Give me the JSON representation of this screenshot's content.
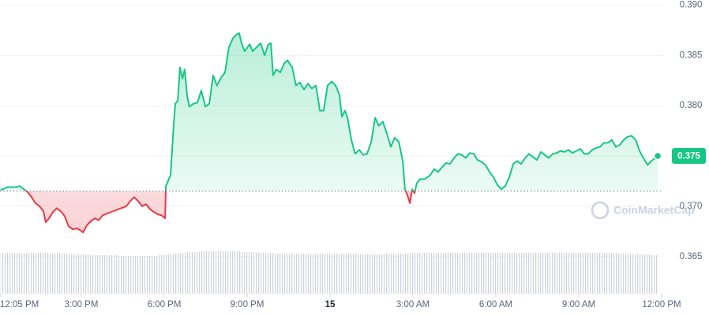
{
  "chart_data": {
    "type": "line",
    "watermark": "CoinMarketCap",
    "x": [
      0.08,
      0.34,
      0.63,
      0.77,
      1.06,
      1.2,
      1.34,
      1.49,
      1.63,
      1.71,
      1.83,
      1.97,
      2.11,
      2.26,
      2.4,
      2.54,
      2.69,
      2.83,
      2.97,
      3.06,
      3.2,
      3.34,
      3.49,
      3.63,
      3.77,
      4.06,
      4.34,
      4.63,
      4.77,
      4.91,
      5.06,
      5.2,
      5.34,
      5.49,
      5.63,
      5.77,
      5.91,
      6.03,
      6.06,
      6.23,
      6.34,
      6.4,
      6.49,
      6.57,
      6.66,
      6.74,
      6.83,
      6.91,
      7.06,
      7.2,
      7.34,
      7.49,
      7.63,
      7.77,
      7.91,
      8.06,
      8.2,
      8.34,
      8.49,
      8.63,
      8.71,
      8.8,
      8.91,
      9.09,
      9.2,
      9.34,
      9.49,
      9.63,
      9.77,
      9.86,
      9.94,
      10.06,
      10.2,
      10.34,
      10.46,
      10.63,
      10.77,
      10.91,
      11.06,
      11.2,
      11.34,
      11.49,
      11.63,
      11.77,
      11.91,
      12.06,
      12.2,
      12.34,
      12.43,
      12.54,
      12.63,
      12.77,
      12.91,
      13.06,
      13.2,
      13.34,
      13.49,
      13.63,
      13.77,
      13.91,
      14.06,
      14.2,
      14.34,
      14.49,
      14.63,
      14.71,
      14.8,
      14.89,
      14.97,
      15.06,
      15.14,
      15.26,
      15.43,
      15.63,
      15.77,
      15.91,
      16.06,
      16.2,
      16.34,
      16.49,
      16.63,
      16.77,
      16.91,
      17.06,
      17.2,
      17.34,
      17.49,
      17.63,
      17.77,
      17.91,
      18.06,
      18.2,
      18.34,
      18.49,
      18.63,
      18.77,
      18.91,
      19.06,
      19.2,
      19.34,
      19.49,
      19.63,
      19.77,
      19.91,
      20.06,
      20.2,
      20.34,
      20.49,
      20.63,
      20.77,
      20.91,
      21.06,
      21.2,
      21.34,
      21.49,
      21.63,
      21.77,
      21.91,
      22.06,
      22.2,
      22.34,
      22.49,
      22.63,
      22.77,
      22.91,
      23.06,
      23.2,
      23.34,
      23.49,
      23.63,
      23.86
    ],
    "series": [
      {
        "color": "#16c784",
        "down_color": "#ea3943",
        "values": [
          0.3716,
          0.3719,
          0.3719,
          0.372,
          0.3714,
          0.3709,
          0.3703,
          0.37,
          0.3695,
          0.3684,
          0.3688,
          0.3694,
          0.3698,
          0.3695,
          0.369,
          0.368,
          0.3677,
          0.3678,
          0.3676,
          0.3674,
          0.3681,
          0.3685,
          0.3688,
          0.3686,
          0.3691,
          0.3694,
          0.3697,
          0.37,
          0.3705,
          0.3709,
          0.3705,
          0.37,
          0.3702,
          0.3697,
          0.3694,
          0.3692,
          0.3691,
          0.3688,
          0.372,
          0.3731,
          0.378,
          0.3802,
          0.3805,
          0.3838,
          0.3827,
          0.3836,
          0.3809,
          0.3799,
          0.3802,
          0.3803,
          0.3815,
          0.3799,
          0.3802,
          0.383,
          0.382,
          0.3828,
          0.3833,
          0.3858,
          0.3867,
          0.3871,
          0.3872,
          0.3862,
          0.3854,
          0.3861,
          0.3854,
          0.3858,
          0.3862,
          0.385,
          0.3861,
          0.3862,
          0.383,
          0.3836,
          0.3833,
          0.3842,
          0.3845,
          0.3838,
          0.382,
          0.3823,
          0.3816,
          0.3822,
          0.3817,
          0.382,
          0.3795,
          0.3795,
          0.382,
          0.3824,
          0.382,
          0.3811,
          0.3789,
          0.3795,
          0.3788,
          0.3766,
          0.3752,
          0.3756,
          0.3751,
          0.3752,
          0.3764,
          0.3788,
          0.378,
          0.3784,
          0.3772,
          0.3759,
          0.3768,
          0.3764,
          0.3745,
          0.3717,
          0.3711,
          0.3703,
          0.3717,
          0.3713,
          0.3723,
          0.3727,
          0.3727,
          0.3731,
          0.3737,
          0.3734,
          0.3739,
          0.3743,
          0.3742,
          0.3748,
          0.3752,
          0.3751,
          0.3748,
          0.3753,
          0.3752,
          0.3746,
          0.3744,
          0.3741,
          0.3734,
          0.3729,
          0.3721,
          0.3717,
          0.372,
          0.3729,
          0.3742,
          0.3745,
          0.3742,
          0.3748,
          0.3752,
          0.3749,
          0.3746,
          0.3754,
          0.3751,
          0.3748,
          0.3752,
          0.3753,
          0.3755,
          0.3754,
          0.3756,
          0.3753,
          0.3755,
          0.3757,
          0.3752,
          0.3752,
          0.3756,
          0.3758,
          0.3759,
          0.3763,
          0.3763,
          0.3766,
          0.3759,
          0.3761,
          0.3766,
          0.3769,
          0.377,
          0.3766,
          0.3755,
          0.3748,
          0.3741,
          0.3745,
          0.375
        ]
      }
    ],
    "baseline": 0.3715,
    "volume": {
      "color": "#d9dce3",
      "values": [
        52,
        52,
        52,
        51,
        52,
        52,
        52,
        51,
        52,
        51,
        50,
        50,
        50,
        49,
        49,
        49,
        49,
        48,
        48,
        48,
        48,
        48,
        48,
        49,
        50,
        51,
        52,
        53,
        53,
        54,
        54,
        54,
        54,
        54,
        54,
        53,
        53,
        52,
        52,
        52,
        51,
        51,
        51,
        51,
        51,
        51,
        51,
        51,
        51,
        51,
        51,
        51,
        50,
        50,
        50,
        50,
        51,
        51,
        51,
        51,
        52,
        52,
        52,
        52,
        52,
        52,
        52,
        52,
        52,
        52,
        52,
        52,
        52,
        52,
        52,
        52,
        52,
        52,
        52,
        52,
        52,
        52,
        52,
        52,
        52,
        52,
        52,
        52,
        52,
        52,
        51,
        51,
        51,
        50,
        50,
        49
      ]
    },
    "xlim": [
      0,
      24.5
    ],
    "xticks": [
      {
        "value": 0.08,
        "label": "12:05 PM"
      },
      {
        "value": 3,
        "label": "3:00 PM"
      },
      {
        "value": 6,
        "label": "6:00 PM"
      },
      {
        "value": 9,
        "label": "9:00 PM"
      },
      {
        "value": 12,
        "label": "15"
      },
      {
        "value": 15,
        "label": "3:00 AM"
      },
      {
        "value": 18,
        "label": "6:00 AM"
      },
      {
        "value": 21,
        "label": "9:00 AM"
      },
      {
        "value": 24,
        "label": "12:00 PM"
      }
    ],
    "ylim": [
      0.3613,
      0.3905
    ],
    "yticks": [
      0.365,
      {
        "value": 0.37,
        "label": "0.370"
      },
      0.375,
      {
        "value": 0.38,
        "label": "0.380"
      },
      0.385,
      {
        "value": 0.39,
        "label": "0.390"
      }
    ],
    "grid": true
  }
}
